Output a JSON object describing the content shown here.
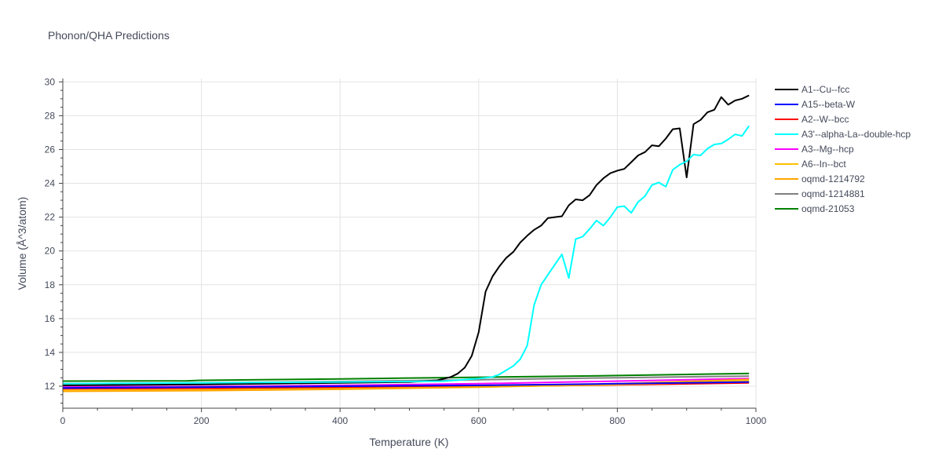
{
  "chart_data": {
    "type": "line",
    "title": "Phonon/QHA Predictions",
    "xlabel": "Temperature (K)",
    "ylabel": "Volume (Å^3/atom)",
    "xlim": [
      0,
      1000
    ],
    "ylim": [
      10.7,
      30.2
    ],
    "x_ticks": [
      "0",
      "200",
      "400",
      "600",
      "800",
      "1000"
    ],
    "y_ticks": [
      "12",
      "14",
      "16",
      "18",
      "20",
      "22",
      "24",
      "26",
      "28",
      "30"
    ],
    "grid": true,
    "legend_position": "right",
    "series": [
      {
        "name": "A1--Cu--fcc",
        "color": "#000000",
        "points": [
          [
            0,
            12.05
          ],
          [
            200,
            12.1
          ],
          [
            400,
            12.2
          ],
          [
            500,
            12.25
          ],
          [
            540,
            12.35
          ],
          [
            560,
            12.55
          ],
          [
            570,
            12.75
          ],
          [
            580,
            13.1
          ],
          [
            590,
            13.8
          ],
          [
            600,
            15.2
          ],
          [
            610,
            17.6
          ],
          [
            620,
            18.5
          ],
          [
            630,
            19.1
          ],
          [
            640,
            19.6
          ],
          [
            650,
            19.95
          ],
          [
            660,
            20.5
          ],
          [
            670,
            20.9
          ],
          [
            680,
            21.25
          ],
          [
            690,
            21.5
          ],
          [
            700,
            21.95
          ],
          [
            710,
            22.0
          ],
          [
            720,
            22.05
          ],
          [
            730,
            22.7
          ],
          [
            740,
            23.05
          ],
          [
            750,
            23.0
          ],
          [
            760,
            23.3
          ],
          [
            770,
            23.9
          ],
          [
            780,
            24.3
          ],
          [
            790,
            24.6
          ],
          [
            800,
            24.75
          ],
          [
            810,
            24.85
          ],
          [
            820,
            25.25
          ],
          [
            830,
            25.65
          ],
          [
            840,
            25.85
          ],
          [
            850,
            26.25
          ],
          [
            860,
            26.2
          ],
          [
            870,
            26.65
          ],
          [
            880,
            27.2
          ],
          [
            890,
            27.25
          ],
          [
            900,
            24.35
          ],
          [
            910,
            27.5
          ],
          [
            920,
            27.75
          ],
          [
            930,
            28.2
          ],
          [
            940,
            28.35
          ],
          [
            950,
            29.1
          ],
          [
            960,
            28.65
          ],
          [
            970,
            28.9
          ],
          [
            980,
            29.0
          ],
          [
            990,
            29.2
          ]
        ]
      },
      {
        "name": "A15--beta-W",
        "color": "#0000ff",
        "points": [
          [
            0,
            11.9
          ],
          [
            200,
            11.95
          ],
          [
            400,
            12.0
          ],
          [
            600,
            12.05
          ],
          [
            800,
            12.15
          ],
          [
            990,
            12.25
          ]
        ]
      },
      {
        "name": "A2--W--bcc",
        "color": "#ff0000",
        "points": [
          [
            0,
            11.85
          ],
          [
            200,
            11.88
          ],
          [
            400,
            11.93
          ],
          [
            600,
            11.98
          ],
          [
            800,
            12.08
          ],
          [
            990,
            12.2
          ]
        ]
      },
      {
        "name": "A3'--alpha-La--double-hcp",
        "color": "#00ffff",
        "points": [
          [
            0,
            12.15
          ],
          [
            200,
            12.2
          ],
          [
            400,
            12.25
          ],
          [
            550,
            12.3
          ],
          [
            600,
            12.45
          ],
          [
            620,
            12.55
          ],
          [
            630,
            12.7
          ],
          [
            640,
            12.95
          ],
          [
            650,
            13.2
          ],
          [
            660,
            13.6
          ],
          [
            670,
            14.4
          ],
          [
            680,
            16.8
          ],
          [
            690,
            18.0
          ],
          [
            700,
            18.6
          ],
          [
            710,
            19.2
          ],
          [
            720,
            19.8
          ],
          [
            730,
            18.4
          ],
          [
            740,
            20.7
          ],
          [
            750,
            20.85
          ],
          [
            760,
            21.3
          ],
          [
            770,
            21.8
          ],
          [
            780,
            21.5
          ],
          [
            790,
            22.0
          ],
          [
            800,
            22.6
          ],
          [
            810,
            22.65
          ],
          [
            820,
            22.25
          ],
          [
            830,
            22.9
          ],
          [
            840,
            23.25
          ],
          [
            850,
            23.9
          ],
          [
            860,
            24.05
          ],
          [
            870,
            23.8
          ],
          [
            880,
            24.8
          ],
          [
            890,
            25.1
          ],
          [
            900,
            25.3
          ],
          [
            910,
            25.7
          ],
          [
            920,
            25.65
          ],
          [
            930,
            26.05
          ],
          [
            940,
            26.3
          ],
          [
            950,
            26.35
          ],
          [
            960,
            26.6
          ],
          [
            970,
            26.9
          ],
          [
            980,
            26.8
          ],
          [
            990,
            27.4
          ]
        ]
      },
      {
        "name": "A3--Mg--hcp",
        "color": "#ff00ff",
        "points": [
          [
            0,
            11.95
          ],
          [
            200,
            11.98
          ],
          [
            400,
            12.05
          ],
          [
            600,
            12.15
          ],
          [
            800,
            12.3
          ],
          [
            990,
            12.45
          ]
        ]
      },
      {
        "name": "A6--In--bct",
        "color": "#ffc000",
        "points": [
          [
            0,
            11.75
          ],
          [
            200,
            11.78
          ],
          [
            400,
            11.85
          ],
          [
            600,
            11.95
          ],
          [
            800,
            12.1
          ],
          [
            990,
            12.3
          ]
        ]
      },
      {
        "name": "oqmd-1214792",
        "color": "#ffa500",
        "points": [
          [
            0,
            11.7
          ],
          [
            200,
            11.74
          ],
          [
            400,
            11.82
          ],
          [
            600,
            11.95
          ],
          [
            800,
            12.15
          ],
          [
            990,
            12.4
          ]
        ]
      },
      {
        "name": "oqmd-1214881",
        "color": "#808080",
        "points": [
          [
            0,
            12.15
          ],
          [
            200,
            12.2
          ],
          [
            400,
            12.28
          ],
          [
            600,
            12.38
          ],
          [
            800,
            12.5
          ],
          [
            990,
            12.6
          ]
        ]
      },
      {
        "name": "oqmd-21053",
        "color": "#008000",
        "points": [
          [
            0,
            12.3
          ],
          [
            180,
            12.32
          ],
          [
            200,
            12.35
          ],
          [
            400,
            12.43
          ],
          [
            600,
            12.53
          ],
          [
            800,
            12.63
          ],
          [
            990,
            12.75
          ]
        ]
      }
    ]
  }
}
